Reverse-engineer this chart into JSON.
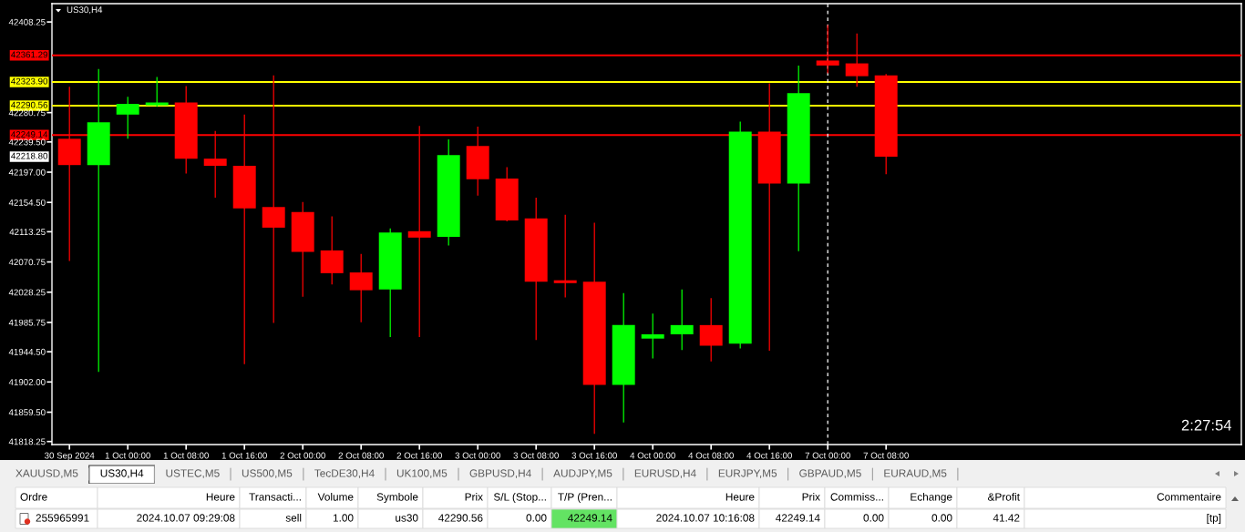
{
  "chart_data": [
    {
      "type": "candlestick",
      "title": "US30,H4",
      "categories": [
        "30 Sep 2024",
        null,
        "1 Oct 00:00",
        null,
        "1 Oct 08:00",
        null,
        "1 Oct 16:00",
        null,
        "2 Oct 00:00",
        null,
        "2 Oct 08:00",
        null,
        "2 Oct 16:00",
        null,
        "3 Oct 00:00",
        null,
        "3 Oct 08:00",
        null,
        "3 Oct 16:00",
        null,
        "4 Oct 00:00",
        null,
        "4 Oct 08:00",
        null,
        "4 Oct 16:00",
        null,
        "7 Oct 00:00",
        null,
        "7 Oct 08:00"
      ],
      "ohlc": [
        [
          42244,
          42317,
          42072,
          42207
        ],
        [
          42207,
          42342,
          41916,
          42267
        ],
        [
          42278,
          42303,
          42244,
          42293
        ],
        [
          42291,
          42331,
          42289,
          42295
        ],
        [
          42295,
          42318,
          42195,
          42216
        ],
        [
          42216,
          42255,
          42161,
          42206
        ],
        [
          42206,
          42278,
          41927,
          42146
        ],
        [
          42148,
          42333,
          41985,
          42119
        ],
        [
          42141,
          42155,
          42022,
          42085
        ],
        [
          42087,
          42135,
          42039,
          42055
        ],
        [
          42056,
          42082,
          41986,
          42031
        ],
        [
          42032,
          42118,
          41965,
          42112
        ],
        [
          42114,
          42262,
          41965,
          42105
        ],
        [
          42106,
          42243,
          42094,
          42221
        ],
        [
          42234,
          42261,
          42164,
          42187
        ],
        [
          42188,
          42204,
          42128,
          42129
        ],
        [
          42132,
          42161,
          41961,
          42043
        ],
        [
          42045,
          42137,
          42021,
          42041
        ],
        [
          42043,
          42126,
          41829,
          41898
        ],
        [
          41898,
          42027,
          41845,
          41982
        ],
        [
          41963,
          41998,
          41935,
          41969
        ],
        [
          41969,
          42032,
          41947,
          41982
        ],
        [
          41982,
          42020,
          41931,
          41953
        ],
        [
          41956,
          42268,
          41949,
          42254
        ],
        [
          42254,
          42322,
          41946,
          42181
        ],
        [
          42181,
          42347,
          42086,
          42308
        ],
        [
          42354,
          42404,
          42336,
          42347
        ],
        [
          42350,
          42392,
          42317,
          42332
        ],
        [
          42333,
          42335,
          42194,
          42218.8
        ]
      ],
      "colors": [
        "#ff0000",
        "#00ff00",
        "#00ff00",
        "#00ff00",
        "#ff0000",
        "#ff0000",
        "#ff0000",
        "#ff0000",
        "#ff0000",
        "#ff0000",
        "#ff0000",
        "#00ff00",
        "#ff0000",
        "#00ff00",
        "#ff0000",
        "#ff0000",
        "#ff0000",
        "#ff0000",
        "#ff0000",
        "#00ff00",
        "#00ff00",
        "#00ff00",
        "#ff0000",
        "#00ff00",
        "#ff0000",
        "#00ff00",
        "#ff0000",
        "#ff0000",
        "#ff0000"
      ],
      "ylim": [
        41814,
        42434
      ],
      "yticks": [
        42408.25,
        42280.75,
        {
          "value": 42239.5,
          "label": "42239.50"
        },
        {
          "value": 42197,
          "label": "42197.00"
        },
        {
          "value": 42154.5,
          "label": "42154.50"
        },
        42113.25,
        42070.75,
        42028.25,
        41985.75,
        {
          "value": 41944.5,
          "label": "41944.50"
        },
        {
          "value": 41902,
          "label": "41902.00"
        },
        {
          "value": 41859.5,
          "label": "41859.50"
        },
        41818.25
      ],
      "ref_lines": [
        {
          "axis": "y",
          "value": 42361.29,
          "label": "42361.29",
          "color": "#ff0000"
        },
        {
          "axis": "y",
          "value": 42323.9,
          "label": "42323.90",
          "color": "#ffff00"
        },
        {
          "axis": "y",
          "value": 42290.56,
          "label": "42290.56",
          "color": "#ffff00"
        },
        {
          "axis": "y",
          "value": 42249.14,
          "label": "42249.14",
          "color": "#ff0000"
        },
        {
          "axis": "x",
          "value": "7 Oct 00:00",
          "color": "#ffffff",
          "line_style": "dashed"
        }
      ],
      "annotations": [
        "2:27:54",
        "42218.80"
      ]
    },
    {
      "type": "other",
      "annotations": [
        "XAUUSD,M5",
        "US30,H4",
        "USTEC,M5",
        "US500,M5",
        "TecDE30,H4",
        "UK100,M5",
        "GBPUSD,H4",
        "AUDJPY,M5",
        "EURUSD,H4",
        "EURJPY,M5",
        "GBPAUD,M5",
        "EURAUD,M5"
      ],
      "colors": [
        "#f0f0f0",
        "#ffffff",
        "#f0f0f0",
        "#f0f0f0",
        "#f0f0f0",
        "#f0f0f0",
        "#f0f0f0",
        "#f0f0f0",
        "#f0f0f0",
        "#f0f0f0",
        "#f0f0f0",
        "#f0f0f0"
      ]
    },
    {
      "type": "other",
      "annotations": [
        "Ordre",
        "Heure",
        "Transacti...",
        "Volume",
        "Symbole",
        "Prix",
        "S/L (Stop...",
        "T/P (Pren...",
        "Heure",
        "Prix",
        "Commiss...",
        "Echange",
        "&Profit",
        "Commentaire",
        "255965991",
        "2024.10.07 09:29:08",
        "sell",
        "1.00",
        "us30",
        "42290.56",
        "0.00",
        "42249.14",
        "2024.10.07 10:16:08",
        "42249.14",
        "0.00",
        "0.00",
        "41.42",
        "[tp]"
      ],
      "colors": [
        "#ffffff",
        "#ffffff",
        "#ffffff",
        "#ffffff",
        "#ffffff",
        "#ffffff",
        "#ffffff",
        "#ffffff",
        "#ffffff",
        "#ffffff",
        "#ffffff",
        "#ffffff",
        "#ffffff",
        "#ffffff",
        "#ffffff",
        "#ffffff",
        "#ffffff",
        "#ffffff",
        "#ffffff",
        "#ffffff",
        "#ffffff",
        "#63e363",
        "#ffffff",
        "#ffffff",
        "#ffffff",
        "#ffffff",
        "#ffffff",
        "#ffffff"
      ]
    }
  ]
}
